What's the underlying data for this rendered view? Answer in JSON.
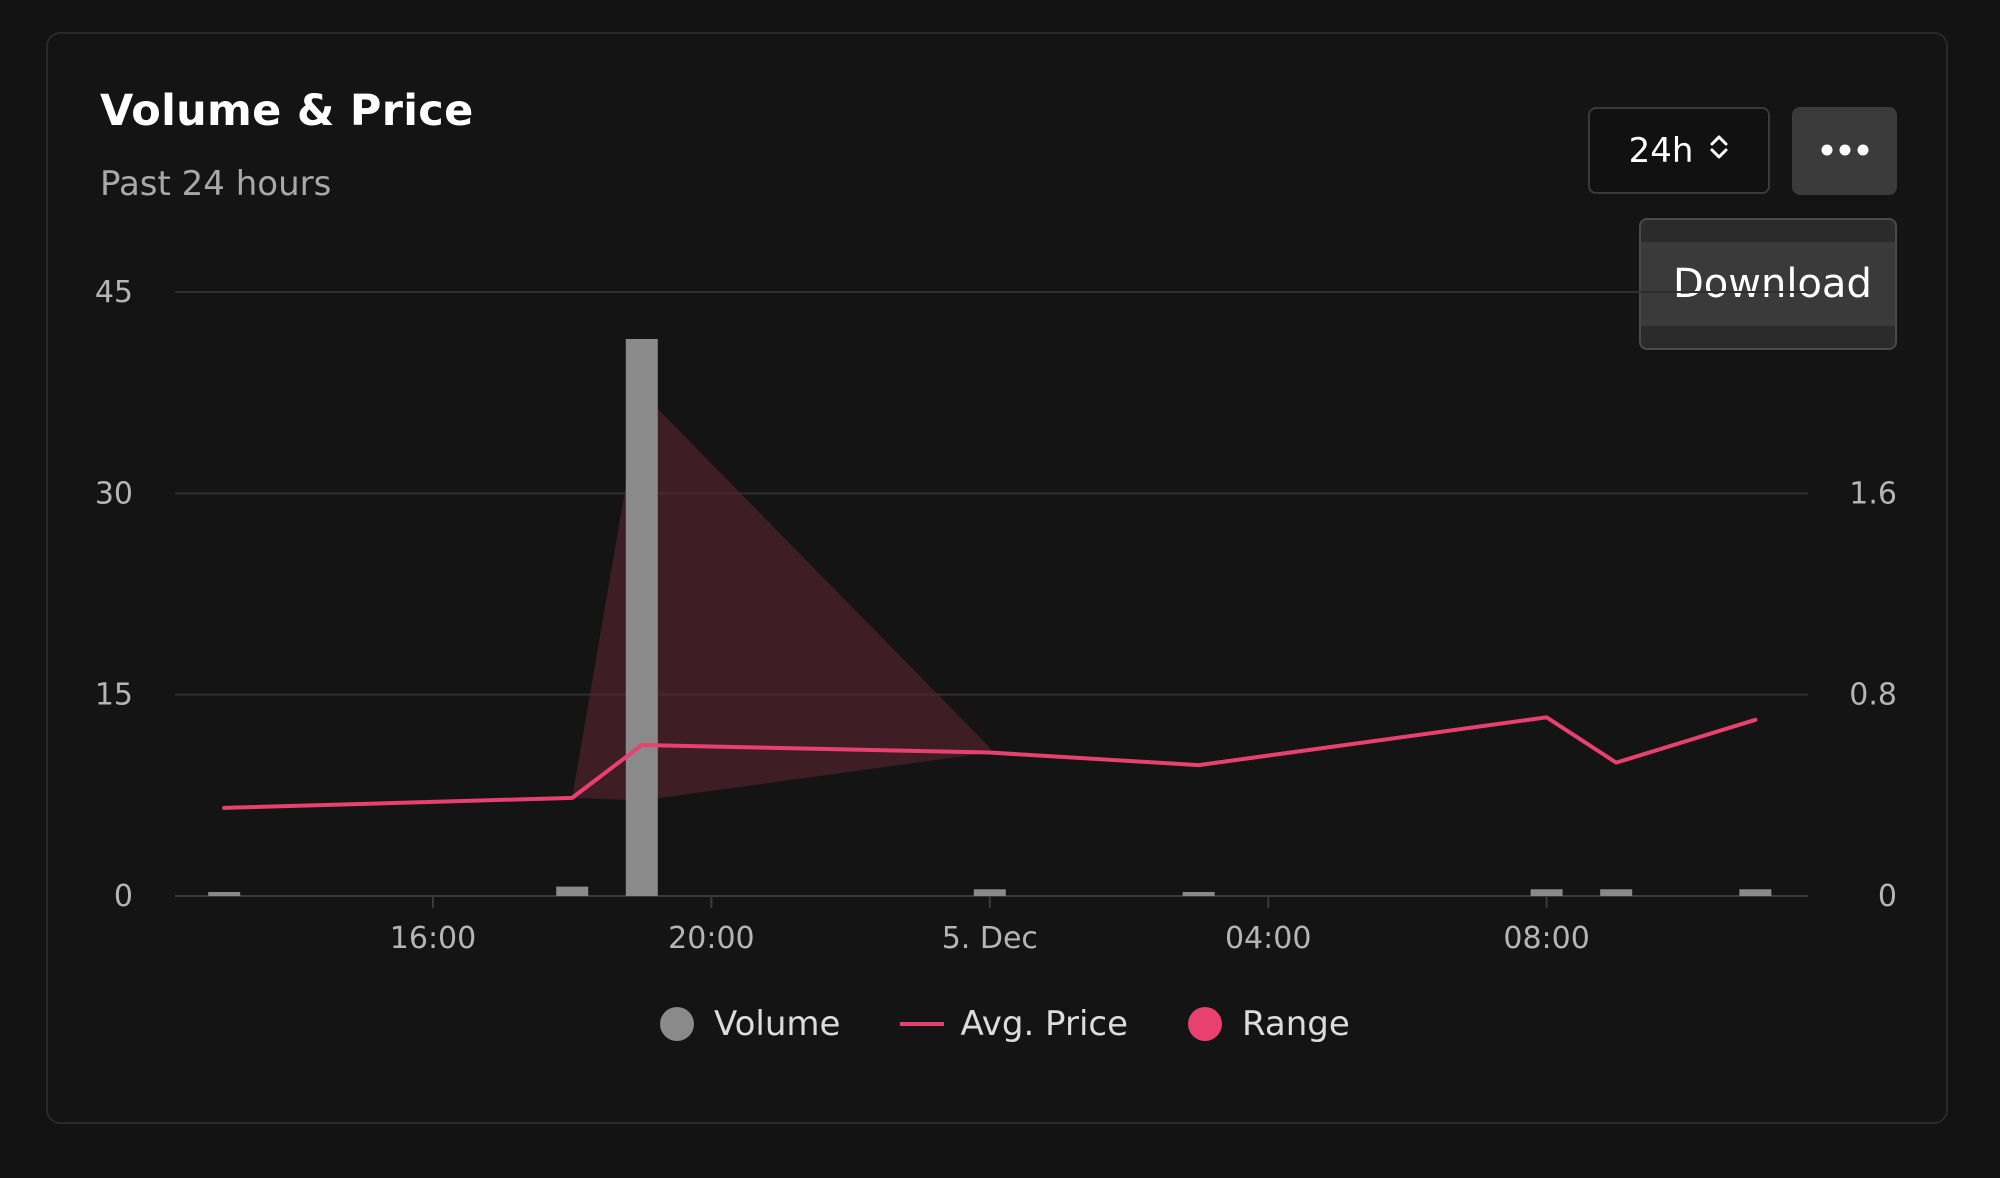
{
  "header": {
    "title": "Volume & Price",
    "subtitle": "Past 24 hours"
  },
  "controls": {
    "range_value": "24h",
    "range_icon": "chevron-up-down-icon",
    "more_icon": "ellipsis-icon"
  },
  "menu": {
    "items": [
      {
        "label": "Download"
      }
    ]
  },
  "legend": {
    "items": [
      {
        "label": "Volume",
        "color": "#8a8a8a",
        "marker": "dot"
      },
      {
        "label": "Avg. Price",
        "color": "#e8416f",
        "marker": "line"
      },
      {
        "label": "Range",
        "color": "#e8416f",
        "marker": "dot"
      }
    ]
  },
  "colors": {
    "background": "#131313",
    "grid": "#2f2f2f",
    "volume": "#8a8a8a",
    "price": "#e8416f",
    "range_fill": "#5a2430"
  },
  "chart_data": {
    "type": "bar+line+area",
    "title": "Volume & Price",
    "subtitle": "Past 24 hours",
    "x_ticks": [
      "16:00",
      "20:00",
      "5. Dec",
      "04:00",
      "08:00"
    ],
    "x_tick_hours": [
      16,
      20,
      24,
      28,
      32
    ],
    "y_left": {
      "ticks": [
        0,
        15,
        30,
        45
      ],
      "ylim": [
        0,
        45
      ]
    },
    "y_right": {
      "ticks": [
        "0",
        "0.8",
        "1.6"
      ],
      "ylim": [
        0,
        2.4
      ]
    },
    "grid": true,
    "legend_position": "bottom-center",
    "series": [
      {
        "name": "Volume",
        "type": "bar",
        "axis": "left",
        "points": [
          {
            "x": 13,
            "y": 0.3
          },
          {
            "x": 18,
            "y": 0.7
          },
          {
            "x": 19,
            "y": 41.5
          },
          {
            "x": 24,
            "y": 0.5
          },
          {
            "x": 27,
            "y": 0.3
          },
          {
            "x": 32,
            "y": 0.5
          },
          {
            "x": 33,
            "y": 0.5
          },
          {
            "x": 35,
            "y": 0.5
          }
        ]
      },
      {
        "name": "Avg. Price",
        "type": "line",
        "axis": "right",
        "points": [
          {
            "x": 13,
            "y": 0.35
          },
          {
            "x": 18,
            "y": 0.39
          },
          {
            "x": 19,
            "y": 0.6
          },
          {
            "x": 24,
            "y": 0.57
          },
          {
            "x": 27,
            "y": 0.52
          },
          {
            "x": 32,
            "y": 0.71
          },
          {
            "x": 33,
            "y": 0.53
          },
          {
            "x": 35,
            "y": 0.7
          }
        ]
      },
      {
        "name": "Range",
        "type": "arearange",
        "axis": "right",
        "points": [
          {
            "x": 18,
            "low": 0.39,
            "high": 0.39
          },
          {
            "x": 19,
            "low": 0.38,
            "high": 2.0
          },
          {
            "x": 24,
            "low": 0.57,
            "high": 0.59
          }
        ]
      }
    ]
  }
}
